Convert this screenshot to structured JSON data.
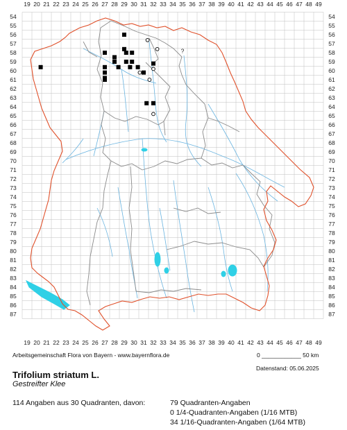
{
  "map": {
    "x_labels": [
      "19",
      "20",
      "21",
      "22",
      "23",
      "24",
      "25",
      "26",
      "27",
      "28",
      "29",
      "30",
      "31",
      "32",
      "33",
      "34",
      "35",
      "36",
      "37",
      "38",
      "39",
      "40",
      "41",
      "42",
      "43",
      "44",
      "45",
      "46",
      "47",
      "48",
      "49"
    ],
    "y_labels": [
      "54",
      "55",
      "56",
      "57",
      "58",
      "59",
      "60",
      "61",
      "62",
      "63",
      "64",
      "65",
      "66",
      "67",
      "68",
      "69",
      "70",
      "71",
      "72",
      "73",
      "74",
      "75",
      "76",
      "77",
      "78",
      "79",
      "80",
      "81",
      "82",
      "83",
      "84",
      "85",
      "86",
      "87"
    ],
    "colors": {
      "grid": "#bfbfbf",
      "state_border": "#e0502a",
      "district_border": "#8a8a8a",
      "rivers": "#6ab4e0",
      "lakes": "#2fd0e6",
      "record_filled": "#000000",
      "record_open": "#000000"
    },
    "records_filled": [
      [
        29.0,
        56.0
      ],
      [
        27.0,
        58.0
      ],
      [
        29.0,
        57.6
      ],
      [
        28.0,
        58.5
      ],
      [
        29.2,
        58.0
      ],
      [
        29.8,
        58.0
      ],
      [
        28.0,
        59.0
      ],
      [
        29.2,
        59.0
      ],
      [
        29.8,
        59.0
      ],
      [
        20.4,
        59.6
      ],
      [
        27.0,
        59.6
      ],
      [
        28.4,
        59.6
      ],
      [
        29.6,
        59.6
      ],
      [
        30.4,
        59.6
      ],
      [
        27.0,
        60.2
      ],
      [
        31.0,
        60.2
      ],
      [
        32.0,
        59.2
      ],
      [
        27.0,
        61.0
      ],
      [
        27.0,
        60.8
      ],
      [
        31.3,
        63.6
      ],
      [
        32.0,
        63.6
      ]
    ],
    "records_open": [
      [
        31.4,
        56.6
      ],
      [
        32.4,
        57.6
      ],
      [
        30.6,
        60.2
      ],
      [
        31.6,
        61.0
      ],
      [
        32.0,
        59.8
      ],
      [
        32.0,
        64.8
      ]
    ],
    "question_marks": [
      {
        "x": 35.0,
        "y": 57.8,
        "text": "?"
      }
    ]
  },
  "footer": {
    "credit": "Arbeitsgemeinschaft Flora von Bayern - www.bayernflora.de",
    "scale": "0 ____________ 50 km",
    "date": "Datenstand: 05.06.2025"
  },
  "species": {
    "scientific": "Trifolium striatum L.",
    "common": "Gestreifter Klee"
  },
  "summary": {
    "total": "114 Angaben aus 30 Quadranten, davon:",
    "quadrants": "79 Quadranten-Angaben",
    "quarter": "0 1/4-Quadranten-Angaben (1/16 MTB)",
    "sixteenth": "34 1/16-Quadranten-Angaben (1/64 MTB)"
  }
}
